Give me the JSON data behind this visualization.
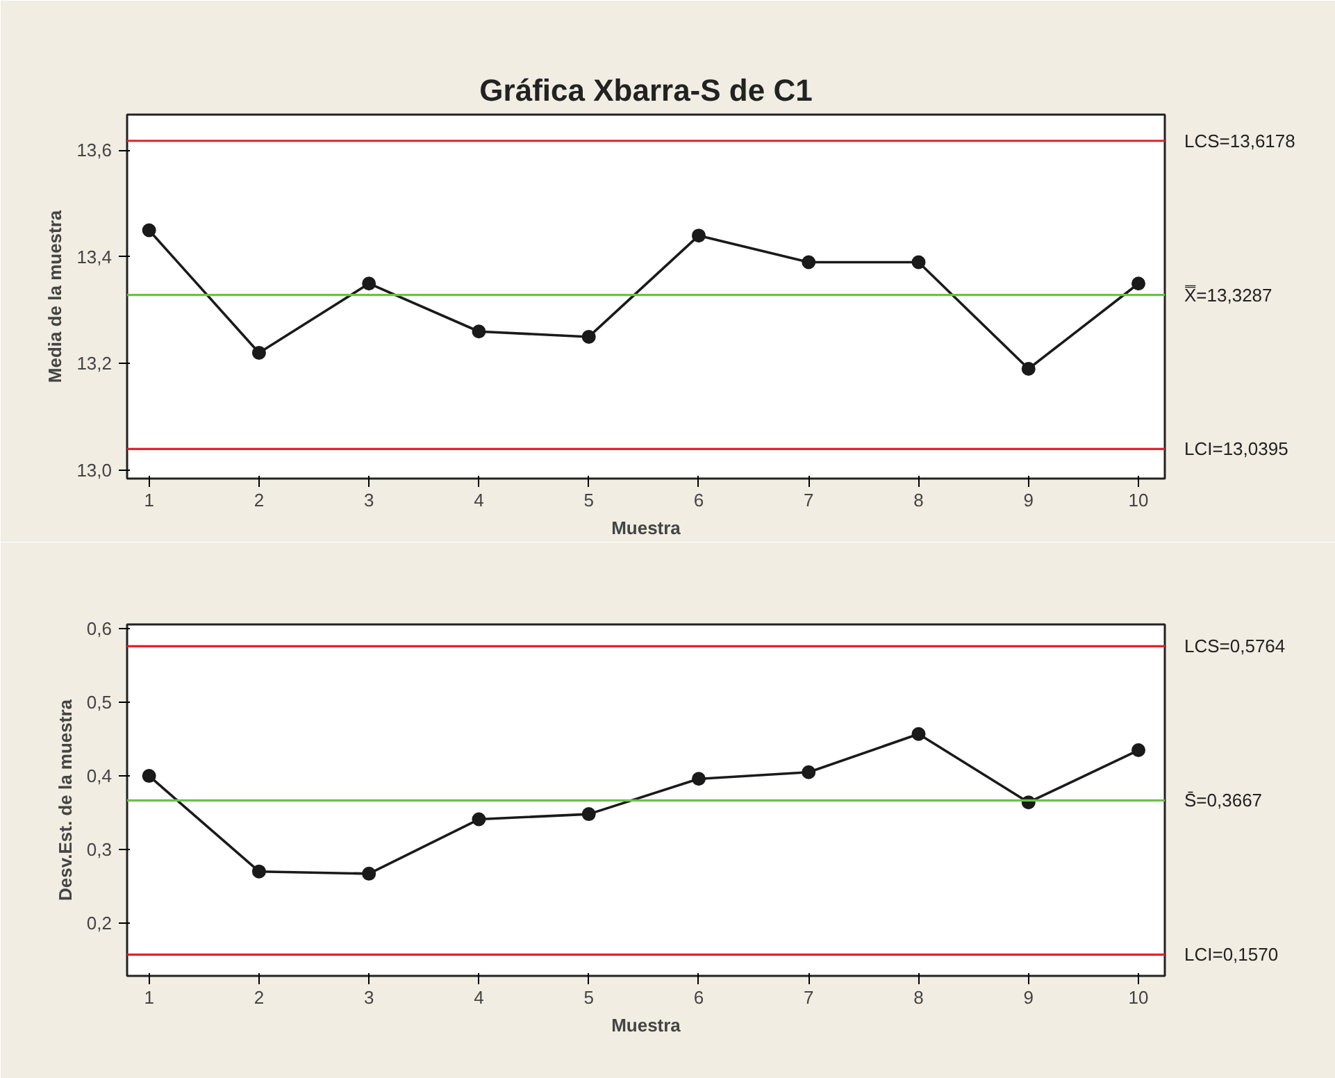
{
  "chart_data": [
    {
      "type": "line",
      "title": "Gráfica Xbarra-S de C1",
      "xlabel": "Muestra",
      "ylabel": "Media de la muestra",
      "x": [
        1,
        2,
        3,
        4,
        5,
        6,
        7,
        8,
        9,
        10
      ],
      "series": [
        {
          "color": "#1a1a1a",
          "values": [
            13.45,
            13.22,
            13.35,
            13.26,
            13.25,
            13.44,
            13.39,
            13.39,
            13.19,
            13.35
          ]
        }
      ],
      "xlim": [
        0.8,
        10.24
      ],
      "xticks": [
        1,
        2,
        3,
        4,
        5,
        6,
        7,
        8,
        9,
        10
      ],
      "ylim": [
        12.984,
        13.667
      ],
      "yticks": [
        {
          "value": 13.0,
          "label": "13,0"
        },
        {
          "value": 13.2,
          "label": "13,2"
        },
        {
          "value": 13.4,
          "label": "13,4"
        },
        {
          "value": 13.6,
          "label": "13,6"
        }
      ],
      "ref_lines": [
        {
          "axis": "y",
          "value": 13.6178,
          "label": "LCS=13,6178",
          "color": "#e8202a"
        },
        {
          "axis": "y",
          "value": 13.3287,
          "label": "X̿=13,3287",
          "color": "#6cc04a"
        },
        {
          "axis": "y",
          "value": 13.0395,
          "label": "LCI=13,0395",
          "color": "#e8202a"
        }
      ],
      "marker": "circle"
    },
    {
      "type": "line",
      "xlabel": "Muestra",
      "ylabel": "Desv.Est. de la muestra",
      "x": [
        1,
        2,
        3,
        4,
        5,
        6,
        7,
        8,
        9,
        10
      ],
      "series": [
        {
          "color": "#1a1a1a",
          "values": [
            0.4,
            0.27,
            0.267,
            0.341,
            0.348,
            0.396,
            0.405,
            0.457,
            0.364,
            0.435
          ]
        }
      ],
      "xlim": [
        0.8,
        10.24
      ],
      "xticks": [
        1,
        2,
        3,
        4,
        5,
        6,
        7,
        8,
        9,
        10
      ],
      "ylim": [
        0.128,
        0.606
      ],
      "yticks": [
        {
          "value": 0.2,
          "label": "0,2"
        },
        {
          "value": 0.3,
          "label": "0,3"
        },
        {
          "value": 0.4,
          "label": "0,4"
        },
        {
          "value": 0.5,
          "label": "0,5"
        },
        {
          "value": 0.6,
          "label": "0,6"
        }
      ],
      "ref_lines": [
        {
          "axis": "y",
          "value": 0.5764,
          "label": "LCS=0,5764",
          "color": "#e8202a"
        },
        {
          "axis": "y",
          "value": 0.3667,
          "label": "S̄=0,3667",
          "color": "#6cc04a"
        },
        {
          "axis": "y",
          "value": 0.157,
          "label": "LCI=0,1570",
          "color": "#e8202a"
        }
      ],
      "marker": "circle"
    }
  ]
}
